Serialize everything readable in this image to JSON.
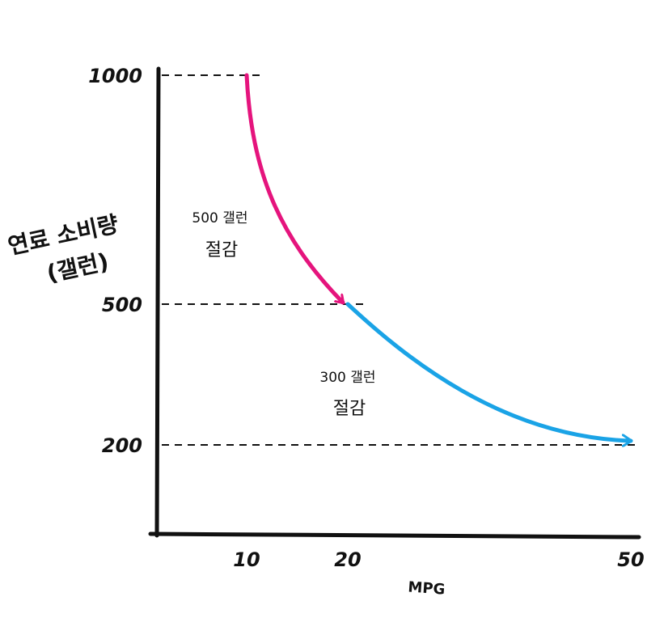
{
  "chart_data": {
    "type": "line",
    "xlabel": "MPG",
    "ylabel_lines": [
      "연료 소비량",
      "(갤런)"
    ],
    "x_ticks": [
      "10",
      "20",
      "50"
    ],
    "y_ticks": [
      "1000",
      "500",
      "200"
    ],
    "xlim": [
      0,
      50
    ],
    "ylim": [
      0,
      1000
    ],
    "series": [
      {
        "color": "#e5147d",
        "points": [
          {
            "x": 10,
            "y": 1000
          },
          {
            "x": 20,
            "y": 500
          }
        ]
      },
      {
        "color": "#1aa3e6",
        "points": [
          {
            "x": 20,
            "y": 500
          },
          {
            "x": 50,
            "y": 200
          }
        ]
      }
    ],
    "reference_lines": [
      1000,
      500,
      200
    ],
    "annotations": [
      {
        "lines": [
          "500 갤런",
          "절감"
        ]
      },
      {
        "lines": [
          "300 갤런",
          "절감"
        ]
      }
    ],
    "grid": false
  }
}
